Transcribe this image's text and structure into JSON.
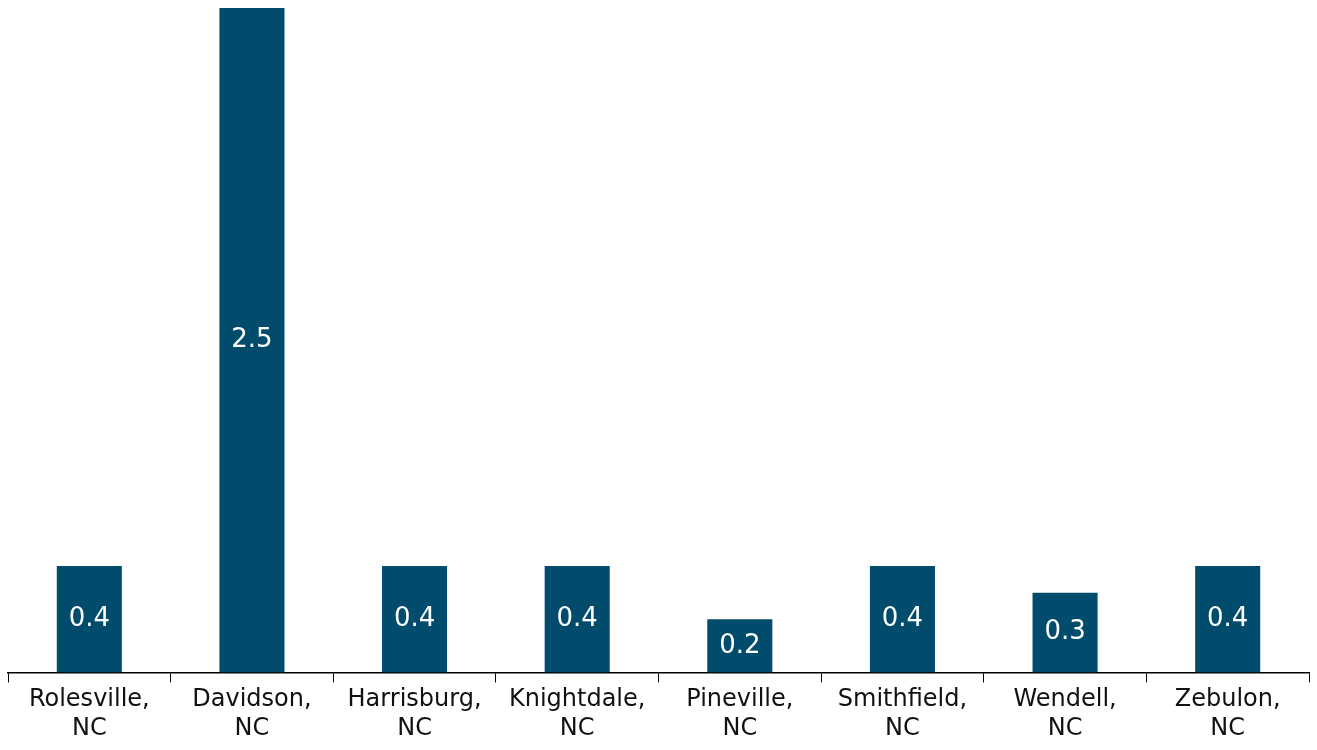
{
  "chart_data": {
    "type": "bar",
    "categories": [
      "Rolesville, NC",
      "Davidson, NC",
      "Harrisburg, NC",
      "Knightdale, NC",
      "Pineville, NC",
      "Smithfield, NC",
      "Wendell, NC",
      "Zebulon, NC"
    ],
    "values": [
      0.4,
      2.5,
      0.4,
      0.4,
      0.2,
      0.4,
      0.3,
      0.4
    ],
    "color": "#014c6d",
    "data_labels": true,
    "grid": false,
    "legend": false
  }
}
